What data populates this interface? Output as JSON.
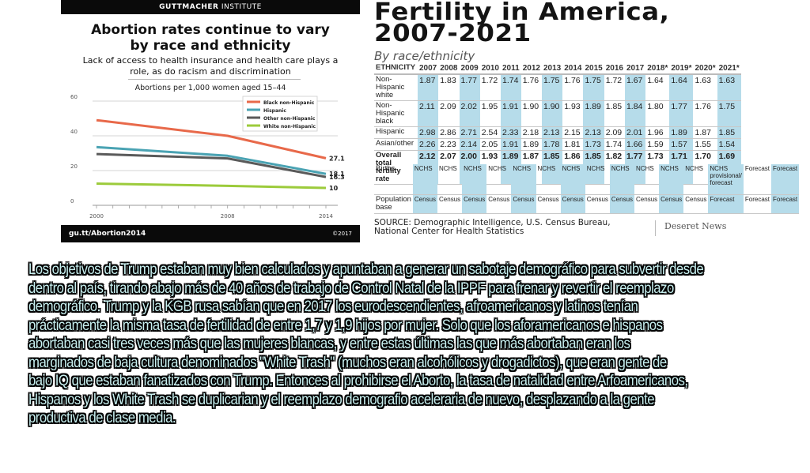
{
  "guttmacher": {
    "brand_bold": "GUTTMACHER",
    "brand_light": "INSTITUTE",
    "title_line1": "Abortion rates continue to vary",
    "title_line2": "by race and ethnicity",
    "subtitle_line1": "Lack of access to health insurance and health care plays a",
    "subtitle_line2": "role, as do racism and discrimination",
    "footer_link": "gu.tt/Abortion2014",
    "footer_copyright": "©2017"
  },
  "chart_data": {
    "type": "line",
    "title": "Abortion rates continue to vary by race and ethnicity",
    "ylabel": "Abortions per 1,000 women aged 15–44",
    "xlabel": "",
    "x": [
      2000,
      2008,
      2014
    ],
    "x_ticks": [
      "2000",
      "2008",
      "2014"
    ],
    "y_ticks": [
      "0",
      "20",
      "40",
      "60"
    ],
    "ylim": [
      0,
      60
    ],
    "grid": true,
    "legend_position": "top-right",
    "series": [
      {
        "name": "Black non-Hispanic",
        "color": "#e8694a",
        "values": [
          49,
          40,
          27.1
        ],
        "end_label": "27.1"
      },
      {
        "name": "Hispanic",
        "color": "#4aa3b3",
        "values": [
          33.5,
          28.5,
          18.1
        ],
        "end_label": "18.1"
      },
      {
        "name": "Other non-Hispanic",
        "color": "#5a5a5a",
        "values": [
          29.5,
          27,
          16.3
        ],
        "end_label": "16.3"
      },
      {
        "name": "White non-Hispanic",
        "color": "#9ccb3b",
        "values": [
          12.5,
          11.2,
          10
        ],
        "end_label": "10"
      }
    ]
  },
  "fertility": {
    "title_line1": "Fertility in America,",
    "title_line2": "2007-2021",
    "subtitle": "By race/ethnicity",
    "header": [
      "ETHNICITY",
      "2007",
      "2008",
      "2009",
      "2010",
      "2011",
      "2012",
      "2013",
      "2014",
      "2015",
      "2016",
      "2017",
      "2018*",
      "2019*",
      "2020*",
      "2021*"
    ],
    "rows": [
      {
        "label": "Non-Hispanic white",
        "values": [
          "1.87",
          "1.83",
          "1.77",
          "1.72",
          "1.74",
          "1.76",
          "1.75",
          "1.76",
          "1.75",
          "1.72",
          "1.67",
          "1.64",
          "1.64",
          "1.63",
          "1.63"
        ]
      },
      {
        "label": "Non-Hispanic black",
        "values": [
          "2.11",
          "2.09",
          "2.02",
          "1.95",
          "1.91",
          "1.90",
          "1.90",
          "1.93",
          "1.89",
          "1.85",
          "1.84",
          "1.80",
          "1.77",
          "1.76",
          "1.75"
        ]
      },
      {
        "label": "Hispanic",
        "values": [
          "2.98",
          "2.86",
          "2.71",
          "2.54",
          "2.33",
          "2.18",
          "2.13",
          "2.15",
          "2.13",
          "2.09",
          "2.01",
          "1.96",
          "1.89",
          "1.87",
          "1.85"
        ]
      },
      {
        "label": "Asian/other",
        "values": [
          "2.26",
          "2.23",
          "2.14",
          "2.05",
          "1.91",
          "1.89",
          "1.78",
          "1.81",
          "1.73",
          "1.74",
          "1.66",
          "1.59",
          "1.57",
          "1.55",
          "1.54"
        ]
      },
      {
        "label": "Overall total fertility rate",
        "values": [
          "2.12",
          "2.07",
          "2.00",
          "1.93",
          "1.89",
          "1.87",
          "1.85",
          "1.86",
          "1.85",
          "1.82",
          "1.77",
          "1.73",
          "1.71",
          "1.70",
          "1.69"
        ],
        "bold": true
      }
    ],
    "source_rows": [
      {
        "label": "Births",
        "values": [
          "NCHS",
          "NCHS",
          "NCHS",
          "NCHS",
          "NCHS",
          "NCHS",
          "NCHS",
          "NCHS",
          "NCHS",
          "NCHS",
          "NCHS",
          "NCHS",
          "NCHS provisional/ forecast",
          "Forecast",
          "Forecast"
        ]
      },
      {
        "label": "Population base",
        "values": [
          "Census",
          "Census",
          "Census",
          "Census",
          "Census",
          "Census",
          "Census",
          "Census",
          "Census",
          "Census",
          "Census",
          "Census",
          "Forecast",
          "Forecast",
          "Forecast"
        ]
      }
    ],
    "source_line1": "SOURCE: Demographic Intelligence, U.S. Census Bureau,",
    "source_line2": "National Center for Health Statistics",
    "publisher": "Deseret News",
    "highlight_color": "#b6dcea"
  },
  "caption": {
    "lines": [
      "Los objetivos de Trump estaban muy bien calculados y apuntaban a generar un sabotaje demográfico para subvertir desde",
      "dentro al país, tirando abajo más de 40 años de trabajo de Control Natal de la IPPF para frenar y revertir el reemplazo",
      "demográfico. Trump y la KGB rusa sabían que en 2017 los eurodescendientes, afroamericanos y latinos tenían",
      "prácticamente la misma tasa de fertilidad de entre 1,7 y 1,9 hijos por mujer. Solo que los aforamericanos e hispanos",
      "abortaban casi tres veces más que las mujeres blancas, y entre estas últimas las que más abortaban eran los",
      "marginados de baja cultura denominados \"White Trash\" (muchos eran alcohólicos y drogadictos), que eran gente de",
      "bajo IQ que estaban fanatizados con Trump. Entonces al prohibirse el Aborto, la tasa de natalidad entre Arfoamericanos,",
      "Hispanos y los White Trash se duplicarian y el reemplazo demografio aceleraria de nuevo, desplazando a la gente",
      "productiva de clase media."
    ]
  }
}
